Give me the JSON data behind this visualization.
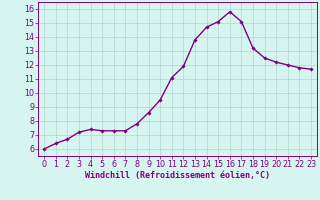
{
  "x": [
    0,
    1,
    2,
    3,
    4,
    5,
    6,
    7,
    8,
    9,
    10,
    11,
    12,
    13,
    14,
    15,
    16,
    17,
    18,
    19,
    20,
    21,
    22,
    23
  ],
  "y": [
    6.0,
    6.4,
    6.7,
    7.2,
    7.4,
    7.3,
    7.3,
    7.3,
    7.8,
    8.6,
    9.5,
    11.1,
    11.9,
    13.8,
    14.7,
    15.1,
    15.8,
    15.1,
    13.2,
    12.5,
    12.2,
    12.0,
    11.8,
    11.7
  ],
  "xlim": [
    -0.5,
    23.5
  ],
  "ylim": [
    5.5,
    16.5
  ],
  "yticks": [
    6,
    7,
    8,
    9,
    10,
    11,
    12,
    13,
    14,
    15,
    16
  ],
  "xticks": [
    0,
    1,
    2,
    3,
    4,
    5,
    6,
    7,
    8,
    9,
    10,
    11,
    12,
    13,
    14,
    15,
    16,
    17,
    18,
    19,
    20,
    21,
    22,
    23
  ],
  "line_color": "#800080",
  "marker": "D",
  "marker_size": 1.8,
  "background_color": "#d6f5f0",
  "grid_color": "#b0d8d0",
  "xlabel": "Windchill (Refroidissement éolien,°C)",
  "xlabel_color": "#800080",
  "xlabel_fontsize": 6.0,
  "tick_fontsize": 5.8,
  "tick_color": "#800080",
  "line_width": 1.0,
  "spine_color": "#800080"
}
